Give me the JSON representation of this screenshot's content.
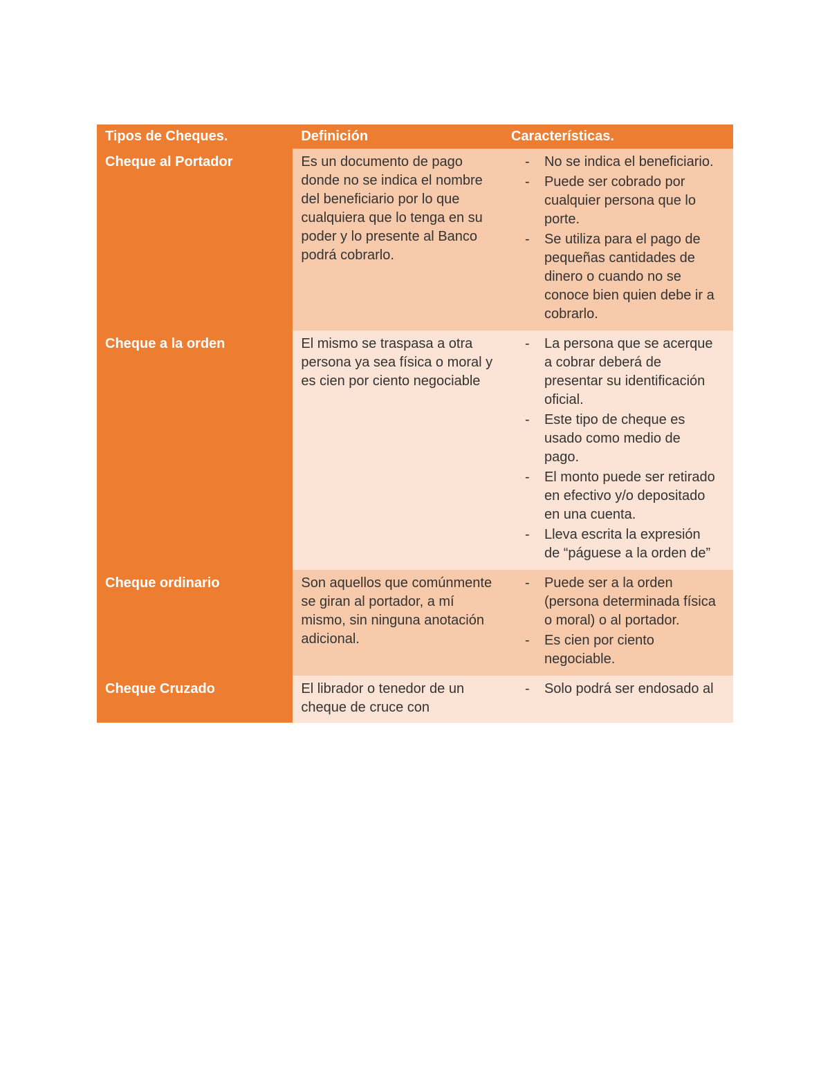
{
  "table": {
    "colors": {
      "header_bg": "#ec7d31",
      "type_col_bg": "#ec7d31",
      "row_alt1_bg": "#f7caac",
      "row_alt2_bg": "#fbe4d5",
      "header_text": "#ffffff",
      "body_text": "#333333"
    },
    "col_widths_pct": [
      30.8,
      33.0,
      36.2
    ],
    "headers": {
      "col1": "Tipos de Cheques.",
      "col2": "Definición",
      "col3": "Características."
    },
    "rows": [
      {
        "type": "Cheque al Portador",
        "definition": "Es un documento de pago donde no se indica el nombre del beneficiario por lo que cualquiera que lo tenga en su poder y lo presente al Banco podrá cobrarlo.",
        "characteristics": [
          "No se indica el beneficiario.",
          "Puede ser cobrado por cualquier persona que lo porte.",
          "Se utiliza para el pago de pequeñas cantidades de dinero o cuando no se conoce bien quien debe ir a cobrarlo."
        ]
      },
      {
        "type": "Cheque a la orden",
        "definition": "El mismo se traspasa a otra persona ya sea física o moral y es cien por ciento negociable",
        "characteristics": [
          "La persona que se acerque a cobrar deberá de presentar su identificación oficial.",
          "Este tipo de cheque es usado como medio de pago.",
          "El monto puede ser retirado en efectivo y/o depositado en una cuenta.",
          "Lleva escrita la expresión de “páguese a la orden de”"
        ]
      },
      {
        "type": "Cheque ordinario",
        "definition": "Son aquellos que comúnmente se giran al portador, a mí mismo, sin ninguna anotación adicional.",
        "characteristics": [
          "Puede ser a la orden (persona determinada física o moral) o al portador.",
          "Es cien por ciento negociable."
        ]
      },
      {
        "type": "Cheque Cruzado",
        "definition": "El librador o tenedor de un cheque de cruce con",
        "characteristics": [
          "Solo podrá ser endosado al"
        ]
      }
    ]
  }
}
